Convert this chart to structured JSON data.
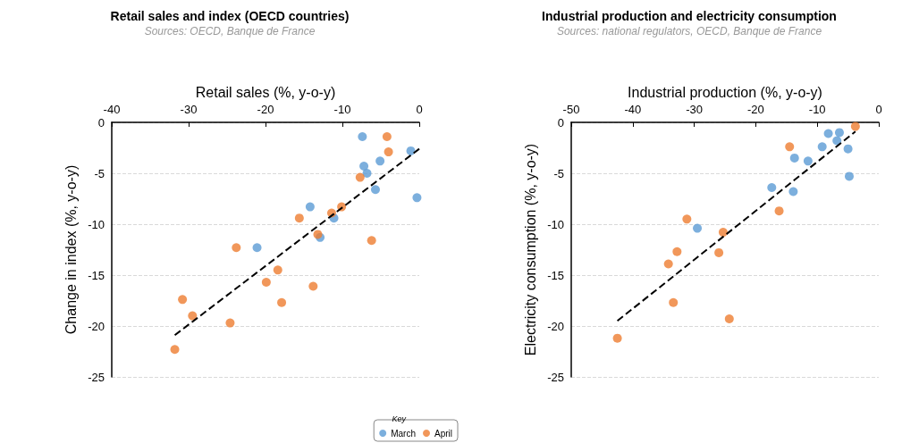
{
  "chart_data": [
    {
      "type": "scatter",
      "title": "Retail sales and index (OECD countries)",
      "subtitle": "Sources: OECD, Banque de France",
      "xlabel": "Retail sales (%, y-o-y)",
      "ylabel": "Change in index (%, y-o-y)",
      "xlim": [
        -40,
        0
      ],
      "xticks": [
        -40,
        -30,
        -20,
        -10,
        0
      ],
      "ylim": [
        -25,
        0
      ],
      "yticks": [
        -25,
        -20,
        -15,
        -10,
        -5,
        0
      ],
      "grid": "y",
      "legend": "bottom right",
      "legend_title": "Key",
      "marker": "circle",
      "series": [
        {
          "name": "March",
          "color": "#5b9bd5",
          "x": [
            -7.4,
            -1.1,
            -5.1,
            -7.2,
            -6.8,
            -5.7,
            -0.3,
            -14.2,
            -11.1,
            -12.9,
            -21.1
          ],
          "values": [
            -1.4,
            -2.8,
            -3.8,
            -4.3,
            -5.0,
            -6.6,
            -7.4,
            -8.3,
            -9.4,
            -11.3,
            -12.3
          ]
        },
        {
          "name": "April",
          "color": "#ed7d31",
          "x": [
            -4.2,
            -4.0,
            -7.7,
            -10.1,
            -11.4,
            -15.6,
            -13.2,
            -6.2,
            -23.8,
            -18.4,
            -19.9,
            -13.8,
            -17.9,
            -30.8,
            -29.5,
            -24.6,
            -31.8
          ],
          "values": [
            -1.4,
            -2.9,
            -5.4,
            -8.3,
            -8.9,
            -9.4,
            -11.0,
            -11.6,
            -12.3,
            -14.5,
            -15.7,
            -16.1,
            -17.7,
            -17.4,
            -19.0,
            -19.7,
            -22.3
          ]
        },
        {
          "type": "line",
          "color": "#000000",
          "line_style": "dashed",
          "marker": "none",
          "x": [
            -31.8,
            0
          ],
          "values": [
            -20.9,
            -2.6
          ]
        }
      ]
    },
    {
      "type": "scatter",
      "title": "Industrial production and electricity consumption",
      "subtitle": "Sources: national regulators, OECD, Banque de France",
      "xlabel": "Industrial production (%, y-o-y)",
      "ylabel": "Electricity consumption (%, y-o-y)",
      "xlim": [
        -50,
        0
      ],
      "xticks": [
        -50,
        -40,
        -30,
        -20,
        -10,
        0
      ],
      "ylim": [
        -25,
        0
      ],
      "yticks": [
        -25,
        -20,
        -15,
        -10,
        -5,
        0
      ],
      "grid": "y",
      "legend": false,
      "marker": "circle",
      "series": [
        {
          "color": "#5b9bd5",
          "x": [
            -8.2,
            -6.4,
            -6.8,
            -9.2,
            -5.0,
            -13.7,
            -11.5,
            -4.8,
            -17.4,
            -13.9,
            -29.5
          ],
          "values": [
            -1.1,
            -1.0,
            -1.8,
            -2.4,
            -2.6,
            -3.5,
            -3.8,
            -5.3,
            -6.4,
            -6.8,
            -10.4
          ]
        },
        {
          "color": "#ed7d31",
          "x": [
            -3.8,
            -14.5,
            -16.2,
            -31.2,
            -25.3,
            -32.8,
            -26.0,
            -34.2,
            -33.4,
            -24.3,
            -42.5
          ],
          "values": [
            -0.4,
            -2.4,
            -8.7,
            -9.5,
            -10.8,
            -12.7,
            -12.8,
            -13.9,
            -17.7,
            -19.3,
            -21.2
          ]
        },
        {
          "type": "line",
          "color": "#000000",
          "line_style": "dashed",
          "marker": "none",
          "x": [
            -42.5,
            -3.8
          ],
          "values": [
            -19.5,
            -0.9
          ]
        }
      ]
    }
  ]
}
